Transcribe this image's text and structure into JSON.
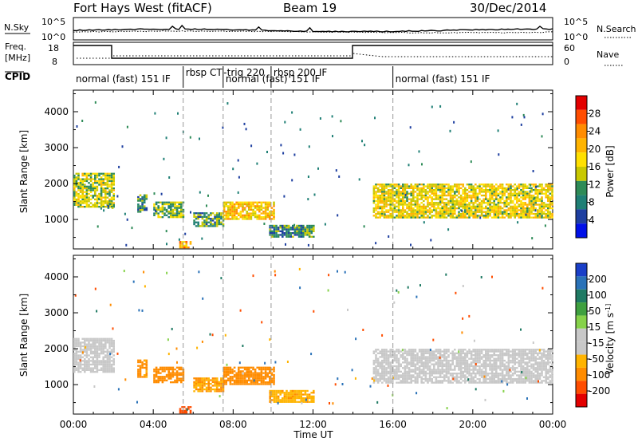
{
  "header": {
    "radar": "Fort Hays West (fitACF)",
    "beam": "Beam 19",
    "date": "30/Dec/2014"
  },
  "time_axis": {
    "label": "Time UT",
    "ticks": [
      "00:00",
      "04:00",
      "08:00",
      "12:00",
      "16:00",
      "20:00",
      "00:00"
    ],
    "minor_step_hours": 1,
    "dashed_markers_hours": [
      5.5,
      7.5,
      9.9,
      16.0
    ]
  },
  "noise_panel": {
    "left_label": "N.Sky",
    "right_label": "N.Search",
    "ticks": [
      "10^5",
      "10^0"
    ],
    "ticks_right": [
      "10^5",
      "10^0"
    ]
  },
  "freq_panel": {
    "left_label_1": "Freq.",
    "left_label_2": "[MHz]",
    "right_label": "Nave",
    "ticks": [
      "18",
      "8"
    ],
    "ticks_right": [
      "60",
      "0"
    ]
  },
  "cpid": {
    "label": "CPID",
    "segments": [
      {
        "start": 0.0,
        "end": 8.9,
        "label": "normal (fast) 151 IF"
      },
      {
        "start": 5.5,
        "end": 7.4,
        "label": "rbsp CT"
      },
      {
        "start": 7.4,
        "end": 9.5,
        "label": "-trig 220"
      },
      {
        "start": 7.5,
        "end": 12.0,
        "label": "normal (fast) 151 IF"
      },
      {
        "start": 9.9,
        "end": 11.5,
        "label": "rbsp 200 IF"
      },
      {
        "start": 16.0,
        "end": 24.0,
        "label": "normal (fast) 151 IF"
      }
    ],
    "dividers": [
      5.5,
      7.5,
      9.9,
      16.0
    ]
  },
  "power_colorbar": {
    "title": "Power [dB]",
    "ticks": [
      "28",
      "24",
      "20",
      "16",
      "12",
      "8",
      "4"
    ],
    "colors": [
      "#e30000",
      "#ff4d00",
      "#ff8c00",
      "#ffb400",
      "#ffe000",
      "#c8c800",
      "#2e8b57",
      "#1f7f75",
      "#1e3fa0",
      "#0010e8"
    ]
  },
  "velocity_colorbar": {
    "title": "Velocity [m s^-1]",
    "ticks": [
      "200",
      "100",
      "50",
      "15",
      "-15",
      "-50",
      "-100",
      "-200"
    ],
    "colors": [
      "#1a3fc8",
      "#2a72b8",
      "#1f7a63",
      "#3fa03f",
      "#86d24a",
      "#c8c8c8",
      "#c8c8c8",
      "#ffb400",
      "#ff8c00",
      "#ff4d00",
      "#e30000"
    ]
  },
  "chart_data": [
    {
      "type": "heatmap",
      "title": "Power",
      "xlabel": "Time UT",
      "ylabel": "Slant Range [km]",
      "xlim": [
        0,
        24
      ],
      "ylim": [
        180,
        4600
      ],
      "yticks": [
        1000,
        2000,
        3000,
        4000
      ],
      "value_unit": "dB",
      "echo_regions": [
        {
          "t0": 0.0,
          "t1": 2.0,
          "range_low": 1350,
          "range_high": 2300,
          "power": 14
        },
        {
          "t0": 1.7,
          "t1": 2.0,
          "range_low": 1300,
          "range_high": 1500,
          "power": 10
        },
        {
          "t0": 3.2,
          "t1": 3.7,
          "range_low": 1200,
          "range_high": 1700,
          "power": 9
        },
        {
          "t0": 4.0,
          "t1": 5.5,
          "range_low": 1050,
          "range_high": 1500,
          "power": 12
        },
        {
          "t0": 5.3,
          "t1": 5.9,
          "range_low": 200,
          "range_high": 400,
          "power": 20
        },
        {
          "t0": 6.0,
          "t1": 7.5,
          "range_low": 800,
          "range_high": 1200,
          "power": 10
        },
        {
          "t0": 7.5,
          "t1": 10.0,
          "range_low": 1000,
          "range_high": 1500,
          "power": 18
        },
        {
          "t0": 9.8,
          "t1": 12.0,
          "range_low": 500,
          "range_high": 850,
          "power": 9
        },
        {
          "t0": 15.0,
          "t1": 24.0,
          "range_low": 1050,
          "range_high": 2000,
          "power": 16
        }
      ]
    },
    {
      "type": "heatmap",
      "title": "Velocity",
      "xlabel": "Time UT",
      "ylabel": "Slant Range [km]",
      "xlim": [
        0,
        24
      ],
      "ylim": [
        180,
        4600
      ],
      "yticks": [
        1000,
        2000,
        3000,
        4000
      ],
      "value_unit": "m s^-1",
      "echo_regions": [
        {
          "t0": 0.0,
          "t1": 2.0,
          "range_low": 1350,
          "range_high": 2300,
          "velocity": 0
        },
        {
          "t0": 3.2,
          "t1": 3.7,
          "range_low": 1200,
          "range_high": 1700,
          "velocity": -60
        },
        {
          "t0": 4.0,
          "t1": 5.5,
          "range_low": 1050,
          "range_high": 1500,
          "velocity": -80
        },
        {
          "t0": 5.3,
          "t1": 5.9,
          "range_low": 200,
          "range_high": 400,
          "velocity": -120
        },
        {
          "t0": 6.0,
          "t1": 7.5,
          "range_low": 800,
          "range_high": 1200,
          "velocity": -50
        },
        {
          "t0": 7.5,
          "t1": 10.0,
          "range_low": 1000,
          "range_high": 1500,
          "velocity": -70
        },
        {
          "t0": 9.8,
          "t1": 12.0,
          "range_low": 500,
          "range_high": 850,
          "velocity": -40
        },
        {
          "t0": 15.0,
          "t1": 24.0,
          "range_low": 1050,
          "range_high": 2000,
          "velocity": 0
        }
      ]
    }
  ]
}
